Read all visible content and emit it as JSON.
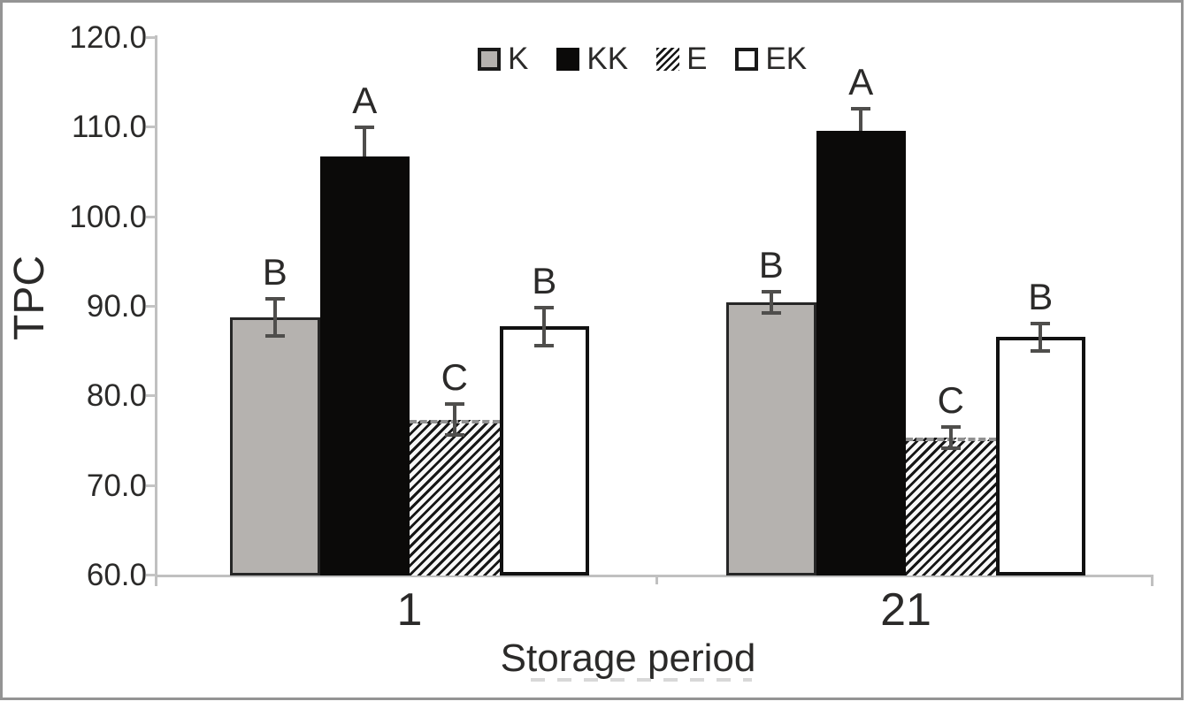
{
  "figure": {
    "y_axis_label": "TPC",
    "x_axis_label": "Storage period"
  },
  "legend": {
    "position": "top-center",
    "items": [
      {
        "label": "K",
        "swatch": "gray"
      },
      {
        "label": "KK",
        "swatch": "black"
      },
      {
        "label": "E",
        "swatch": "hatch"
      },
      {
        "label": "EK",
        "swatch": "white"
      }
    ]
  },
  "chart_data": {
    "type": "bar",
    "title": "",
    "xlabel": "Storage period",
    "ylabel": "TPC",
    "categories": [
      "1",
      "21"
    ],
    "series": [
      {
        "name": "K",
        "style": "gray",
        "values": [
          88.7,
          90.4
        ],
        "errors": [
          2.1,
          1.2
        ],
        "sig_letters": [
          "B",
          "B"
        ]
      },
      {
        "name": "KK",
        "style": "black",
        "values": [
          106.7,
          109.5
        ],
        "errors": [
          3.2,
          2.5
        ],
        "sig_letters": [
          "A",
          "A"
        ]
      },
      {
        "name": "E",
        "style": "hatch",
        "values": [
          77.3,
          75.3
        ],
        "errors": [
          1.7,
          1.2
        ],
        "sig_letters": [
          "C",
          "C"
        ]
      },
      {
        "name": "EK",
        "style": "white",
        "values": [
          87.7,
          86.5
        ],
        "errors": [
          2.1,
          1.5
        ],
        "sig_letters": [
          "B",
          "B"
        ]
      }
    ],
    "ylim": [
      60,
      120
    ],
    "ytick_step": 10,
    "yticks": [
      "60.0",
      "70.0",
      "80.0",
      "90.0",
      "100.0",
      "110.0",
      "120.0"
    ],
    "grid": false,
    "error_bars": true,
    "legend_entries": [
      "K",
      "KK",
      "E",
      "EK"
    ]
  },
  "colors": {
    "bar_gray": "#b5b2af",
    "bar_black": "#0b0a09",
    "bar_white": "#ffffff",
    "hatch_black": "#161616",
    "axis_line": "#c0c0c0",
    "error_bar": "#4f4e4c",
    "text": "#2b2a29",
    "figure_border": "#949494"
  }
}
